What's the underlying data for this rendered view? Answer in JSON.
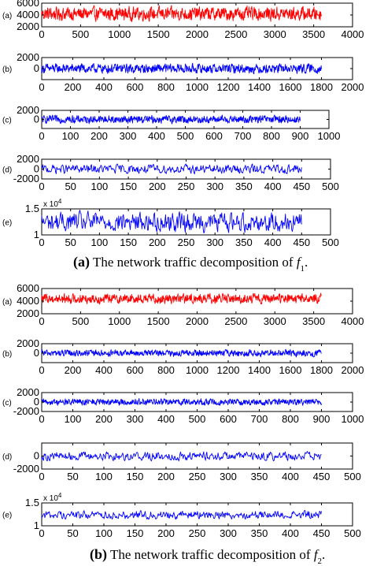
{
  "colors": {
    "red_series": "#ff0000",
    "blue_series": "#0000ff"
  },
  "chart_data": [
    {
      "type": "line",
      "group": "a",
      "label": "(a)",
      "xlim": [
        0,
        4000
      ],
      "ylim": [
        2000,
        6000
      ],
      "xticks": [
        0,
        500,
        1000,
        1500,
        2000,
        2500,
        3000,
        3500,
        4000
      ],
      "yticks": [
        2000,
        4000,
        6000
      ],
      "series": [
        {
          "color": "#ff0000",
          "length": 3600,
          "mean": 4200,
          "amplitude": 1500
        }
      ]
    },
    {
      "type": "line",
      "group": "a",
      "label": "(b)",
      "xlim": [
        0,
        2000
      ],
      "ylim": [
        -2000,
        2000
      ],
      "xticks": [
        0,
        200,
        400,
        600,
        800,
        1000,
        1200,
        1400,
        1600,
        1800,
        2000
      ],
      "yticks": [
        0,
        2000
      ],
      "series": [
        {
          "color": "#0000ff",
          "length": 1800,
          "mean": 0,
          "amplitude": 1100
        }
      ]
    },
    {
      "type": "line",
      "group": "a",
      "label": "(c)",
      "xlim": [
        0,
        1000
      ],
      "ylim": [
        -2000,
        2000
      ],
      "xticks": [
        0,
        100,
        200,
        300,
        400,
        500,
        600,
        700,
        800,
        900,
        1000
      ],
      "yticks": [
        0,
        2000
      ],
      "series": [
        {
          "color": "#0000ff",
          "length": 900,
          "mean": 0,
          "amplitude": 1100
        }
      ]
    },
    {
      "type": "line",
      "group": "a",
      "label": "(d)",
      "xlim": [
        0,
        500
      ],
      "ylim": [
        -2000,
        2000
      ],
      "xticks": [
        0,
        50,
        100,
        150,
        200,
        250,
        300,
        350,
        400,
        450,
        500
      ],
      "yticks": [
        -2000,
        0,
        2000
      ],
      "series": [
        {
          "color": "#0000ff",
          "length": 450,
          "mean": 0,
          "amplitude": 1200
        }
      ]
    },
    {
      "type": "line",
      "group": "a",
      "label": "(e)",
      "xlim": [
        0,
        500
      ],
      "ylim": [
        10000,
        15000
      ],
      "xticks": [
        0,
        50,
        100,
        150,
        200,
        250,
        300,
        350,
        400,
        450,
        500
      ],
      "yticks": [
        10000,
        15000
      ],
      "ytick_labels": [
        "1",
        "1.5"
      ],
      "exponent_label": "x 10",
      "exponent": "4",
      "series": [
        {
          "color": "#0000ff",
          "length": 450,
          "mean": 12500,
          "amplitude": 2500
        }
      ]
    },
    {
      "type": "line",
      "group": "b",
      "label": "(a)",
      "xlim": [
        0,
        4000
      ],
      "ylim": [
        2000,
        6000
      ],
      "xticks": [
        0,
        500,
        1000,
        1500,
        2000,
        2500,
        3000,
        3500,
        4000
      ],
      "yticks": [
        2000,
        4000,
        6000
      ],
      "series": [
        {
          "color": "#ff0000",
          "length": 3600,
          "mean": 4400,
          "amplitude": 1000
        }
      ]
    },
    {
      "type": "line",
      "group": "b",
      "label": "(b)",
      "xlim": [
        0,
        2000
      ],
      "ylim": [
        -2000,
        2000
      ],
      "xticks": [
        0,
        200,
        400,
        600,
        800,
        1000,
        1200,
        1400,
        1600,
        1800,
        2000
      ],
      "yticks": [
        0,
        2000
      ],
      "series": [
        {
          "color": "#0000ff",
          "length": 1800,
          "mean": 0,
          "amplitude": 900
        }
      ]
    },
    {
      "type": "line",
      "group": "b",
      "label": "(c)",
      "xlim": [
        0,
        1000
      ],
      "ylim": [
        -2000,
        2000
      ],
      "xticks": [
        0,
        100,
        200,
        300,
        400,
        500,
        600,
        700,
        800,
        900,
        1000
      ],
      "yticks": [
        -2000,
        0,
        2000
      ],
      "series": [
        {
          "color": "#0000ff",
          "length": 900,
          "mean": 0,
          "amplitude": 900
        }
      ]
    },
    {
      "type": "line",
      "group": "b",
      "label": "(d)",
      "xlim": [
        0,
        500
      ],
      "ylim": [
        -2000,
        2000
      ],
      "xticks": [
        0,
        50,
        100,
        150,
        200,
        250,
        300,
        350,
        400,
        450,
        500
      ],
      "yticks": [
        -2000,
        0
      ],
      "series": [
        {
          "color": "#0000ff",
          "length": 450,
          "mean": 0,
          "amplitude": 900
        }
      ]
    },
    {
      "type": "line",
      "group": "b",
      "label": "(e)",
      "xlim": [
        0,
        500
      ],
      "ylim": [
        10000,
        15000
      ],
      "xticks": [
        0,
        50,
        100,
        150,
        200,
        250,
        300,
        350,
        400,
        450,
        500
      ],
      "yticks": [
        10000,
        15000
      ],
      "ytick_labels": [
        "1",
        "1.5"
      ],
      "exponent_label": "x 10",
      "exponent": "4",
      "series": [
        {
          "color": "#0000ff",
          "length": 450,
          "mean": 12400,
          "amplitude": 1200
        }
      ]
    }
  ],
  "captions": {
    "a": {
      "letter": "(a)",
      "text": " The network traffic decomposition of ",
      "var": "f",
      "sub": "1",
      "end": "."
    },
    "b": {
      "letter": "(b)",
      "text": " The network traffic decomposition of ",
      "var": "f",
      "sub": "2",
      "end": "."
    }
  }
}
